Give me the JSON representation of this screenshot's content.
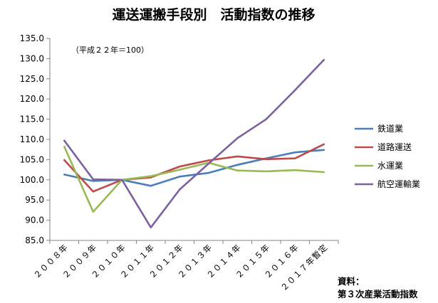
{
  "chart_data": {
    "type": "line",
    "title": "運送運搬手段別　活動指数の推移",
    "note": "（平成２２年＝100）",
    "categories": [
      "２００８年",
      "２００９年",
      "２０１０年",
      "２０１１年",
      "２０１２年",
      "２０１３年",
      "２０１４年",
      "２０１５年",
      "２０１６年",
      "２０１７年暫定"
    ],
    "ylim": [
      85.0,
      135.0
    ],
    "yticks": [
      "85.0",
      "90.0",
      "95.0",
      "100.0",
      "105.0",
      "110.0",
      "115.0",
      "120.0",
      "125.0",
      "130.0",
      "135.0"
    ],
    "grid": false,
    "legend_position": "right",
    "series": [
      {
        "name": "鉄道業",
        "color": "#4a7ebb",
        "values": [
          101.3,
          99.7,
          100.0,
          98.5,
          100.8,
          101.7,
          103.7,
          105.3,
          106.8,
          107.4
        ]
      },
      {
        "name": "道路運送",
        "color": "#be4b48",
        "values": [
          104.9,
          97.1,
          100.0,
          100.6,
          103.3,
          104.8,
          105.8,
          105.1,
          105.3,
          108.8
        ]
      },
      {
        "name": "水運業",
        "color": "#98b954",
        "values": [
          108.2,
          92.1,
          100.0,
          100.9,
          102.5,
          104.2,
          102.3,
          102.1,
          102.4,
          101.9
        ]
      },
      {
        "name": "航空運輸業",
        "color": "#7d60a0",
        "values": [
          109.7,
          100.1,
          100.0,
          88.2,
          97.6,
          104.0,
          110.3,
          115.0,
          122.2,
          129.7
        ]
      }
    ]
  },
  "source": {
    "line1": "資料：",
    "line2": "第３次産業活動指数"
  }
}
